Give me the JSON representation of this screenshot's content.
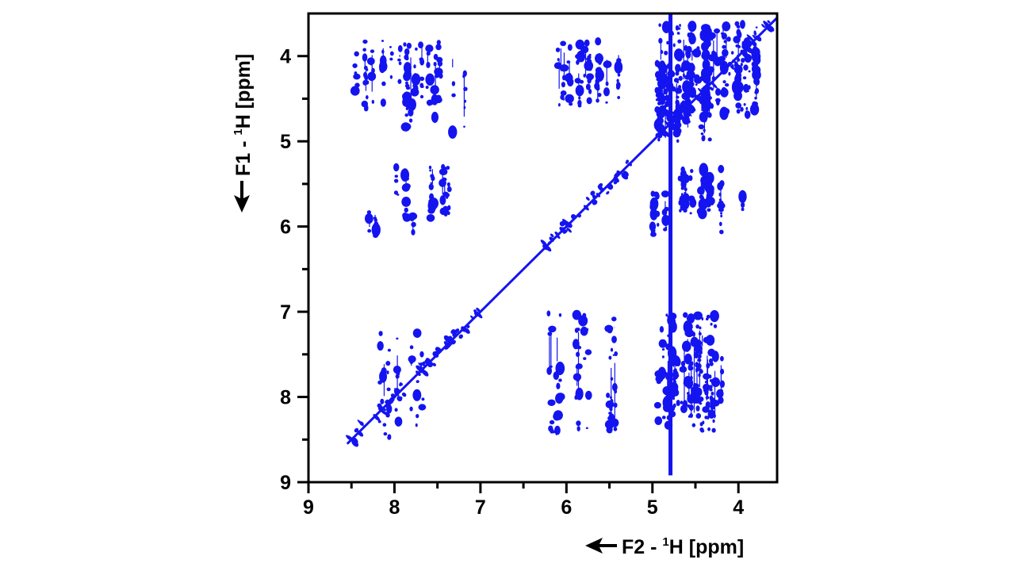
{
  "chart_data": {
    "type": "scatter",
    "title": "",
    "xlabel": {
      "main": "F2 - ",
      "sup": "1",
      "tail": "H [ppm]"
    },
    "ylabel": {
      "main": "F1 - ",
      "sup": "1",
      "tail": "H [ppm]"
    },
    "xlim": [
      9.0,
      3.55
    ],
    "ylim": [
      3.5,
      9.0
    ],
    "x_ticks": [
      9,
      8,
      7,
      6,
      5,
      4
    ],
    "y_ticks": [
      4,
      5,
      6,
      7,
      8,
      9
    ],
    "x_axis_reversed": true,
    "y_axis_increases_downward": true,
    "grid": false,
    "color": "#1414f0",
    "diagonal": {
      "from": [
        8.55,
        8.55
      ],
      "to": [
        3.55,
        3.55
      ]
    },
    "water_line": {
      "x": 4.79,
      "y_from": 3.5,
      "y_to": 8.92
    },
    "clusters": [
      {
        "x": [
          7.4,
          8.45
        ],
        "y": [
          3.82,
          4.62
        ],
        "n": 90
      },
      {
        "x": [
          7.05,
          8.45
        ],
        "y": [
          4.0,
          4.9
        ],
        "n": 30
      },
      {
        "x": [
          7.2,
          8.0
        ],
        "y": [
          5.3,
          5.9
        ],
        "n": 55
      },
      {
        "x": [
          7.2,
          8.45
        ],
        "y": [
          5.8,
          6.12
        ],
        "n": 15
      },
      {
        "x": [
          5.35,
          6.1
        ],
        "y": [
          3.82,
          4.6
        ],
        "n": 75
      },
      {
        "x": [
          3.75,
          4.95
        ],
        "y": [
          3.62,
          4.7
        ],
        "n": 260
      },
      {
        "x": [
          4.3,
          4.95
        ],
        "y": [
          4.2,
          5.0
        ],
        "n": 90
      },
      {
        "x": [
          4.15,
          4.75
        ],
        "y": [
          5.32,
          5.85
        ],
        "n": 65
      },
      {
        "x": [
          3.9,
          5.0
        ],
        "y": [
          5.6,
          6.1
        ],
        "n": 30
      },
      {
        "x": [
          5.35,
          6.2
        ],
        "y": [
          7.02,
          8.4
        ],
        "n": 70
      },
      {
        "x": [
          3.95,
          4.95
        ],
        "y": [
          7.02,
          8.4
        ],
        "n": 110
      },
      {
        "x": [
          4.1,
          4.85
        ],
        "y": [
          7.55,
          8.15
        ],
        "n": 90
      },
      {
        "x": [
          7.6,
          8.2
        ],
        "y": [
          7.2,
          8.5
        ],
        "n": 45
      },
      {
        "x": [
          6.1,
          6.2
        ],
        "y": [
          8.38,
          8.45
        ],
        "n": 2
      }
    ]
  }
}
